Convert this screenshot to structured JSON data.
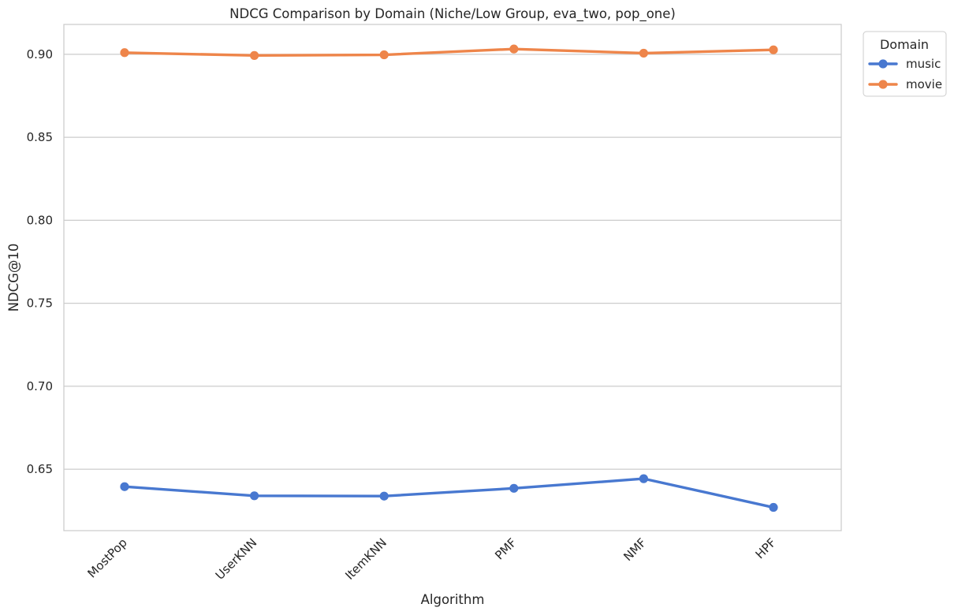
{
  "chart_data": {
    "type": "line",
    "title": "NDCG Comparison by Domain (Niche/Low Group, eva_two, pop_one)",
    "xlabel": "Algorithm",
    "ylabel": "NDCG@10",
    "categories": [
      "MostPop",
      "UserKNN",
      "ItemKNN",
      "PMF",
      "NMF",
      "HPF"
    ],
    "ylim": [
      0.613,
      0.918
    ],
    "yticks": [
      0.65,
      0.7,
      0.75,
      0.8,
      0.85,
      0.9
    ],
    "ytick_labels": [
      "0.65",
      "0.70",
      "0.75",
      "0.80",
      "0.85",
      "0.90"
    ],
    "grid": "horizontal",
    "legend": {
      "title": "Domain",
      "placement": "upper-right-outside"
    },
    "series": [
      {
        "name": "music",
        "color": "#4878d0",
        "values": [
          0.6395,
          0.634,
          0.6338,
          0.6385,
          0.6443,
          0.627
        ]
      },
      {
        "name": "movie",
        "color": "#ee854a",
        "values": [
          0.901,
          0.8993,
          0.8997,
          0.9032,
          0.9007,
          0.9027
        ]
      }
    ]
  }
}
